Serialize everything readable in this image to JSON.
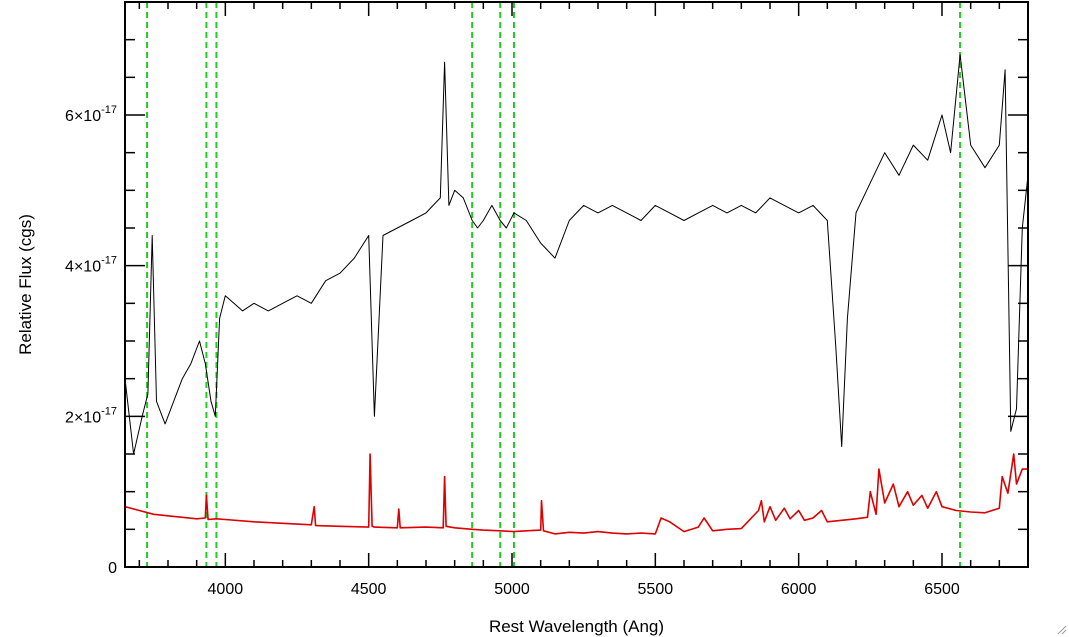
{
  "chart_data": {
    "type": "line",
    "title": "",
    "xlabel": "Rest Wavelength (Ang)",
    "ylabel": "Relative Flux (cgs)",
    "xlim": [
      3650,
      6800
    ],
    "ylim": [
      0,
      7.5e-17
    ],
    "x_ticks": [
      {
        "value": 4000,
        "label": "4000"
      },
      {
        "value": 4500,
        "label": "4500"
      },
      {
        "value": 5000,
        "label": "5000"
      },
      {
        "value": 5500,
        "label": "5500"
      },
      {
        "value": 6000,
        "label": "6000"
      },
      {
        "value": 6500,
        "label": "6500"
      }
    ],
    "y_ticks": [
      {
        "value": 0,
        "mantissa": "0",
        "exponent": ""
      },
      {
        "value": 2e-17,
        "mantissa": "2×10",
        "exponent": "-17"
      },
      {
        "value": 4e-17,
        "mantissa": "4×10",
        "exponent": "-17"
      },
      {
        "value": 6e-17,
        "mantissa": "6×10",
        "exponent": "-17"
      }
    ],
    "grid": false,
    "series": [
      {
        "color": "#000000",
        "x": [
          3650,
          3680,
          3710,
          3730,
          3745,
          3760,
          3790,
          3820,
          3850,
          3880,
          3910,
          3930,
          3950,
          3965,
          3980,
          4000,
          4030,
          4060,
          4100,
          4150,
          4200,
          4250,
          4300,
          4350,
          4400,
          4450,
          4500,
          4520,
          4550,
          4600,
          4650,
          4700,
          4750,
          4765,
          4780,
          4800,
          4830,
          4861,
          4880,
          4900,
          4930,
          4959,
          4980,
          5007,
          5050,
          5100,
          5150,
          5200,
          5250,
          5300,
          5350,
          5400,
          5450,
          5500,
          5550,
          5600,
          5650,
          5700,
          5750,
          5800,
          5850,
          5900,
          5950,
          6000,
          6050,
          6100,
          6130,
          6150,
          6170,
          6200,
          6250,
          6300,
          6350,
          6400,
          6450,
          6500,
          6530,
          6563,
          6600,
          6650,
          6700,
          6720,
          6740,
          6760,
          6780,
          6800
        ],
        "y": [
          2.5e-17,
          1.5e-17,
          2e-17,
          2.3e-17,
          4.4e-17,
          2.2e-17,
          1.9e-17,
          2.2e-17,
          2.5e-17,
          2.7e-17,
          3e-17,
          2.7e-17,
          2.2e-17,
          2e-17,
          3.3e-17,
          3.6e-17,
          3.5e-17,
          3.4e-17,
          3.5e-17,
          3.4e-17,
          3.5e-17,
          3.6e-17,
          3.5e-17,
          3.8e-17,
          3.9e-17,
          4.1e-17,
          4.4e-17,
          2e-17,
          4.4e-17,
          4.5e-17,
          4.6e-17,
          4.7e-17,
          4.9e-17,
          6.7e-17,
          4.8e-17,
          5e-17,
          4.9e-17,
          4.6e-17,
          4.5e-17,
          4.6e-17,
          4.8e-17,
          4.6e-17,
          4.5e-17,
          4.7e-17,
          4.6e-17,
          4.3e-17,
          4.1e-17,
          4.6e-17,
          4.8e-17,
          4.7e-17,
          4.8e-17,
          4.7e-17,
          4.6e-17,
          4.8e-17,
          4.7e-17,
          4.6e-17,
          4.7e-17,
          4.8e-17,
          4.7e-17,
          4.8e-17,
          4.7e-17,
          4.9e-17,
          4.8e-17,
          4.7e-17,
          4.8e-17,
          4.6e-17,
          2.9e-17,
          1.6e-17,
          3.3e-17,
          4.7e-17,
          5.1e-17,
          5.5e-17,
          5.2e-17,
          5.6e-17,
          5.4e-17,
          6e-17,
          5.5e-17,
          6.8e-17,
          5.6e-17,
          5.3e-17,
          5.6e-17,
          6.6e-17,
          1.8e-17,
          2.1e-17,
          4.5e-17,
          5.2e-17
        ]
      },
      {
        "color": "#dd0000",
        "x": [
          3650,
          3700,
          3750,
          3800,
          3850,
          3900,
          3930,
          3934,
          3940,
          3969,
          4000,
          4100,
          4200,
          4300,
          4310,
          4315,
          4400,
          4500,
          4505,
          4512,
          4520,
          4600,
          4605,
          4610,
          4700,
          4760,
          4765,
          4770,
          4800,
          4861,
          4900,
          4959,
          5007,
          5050,
          5100,
          5103,
          5110,
          5150,
          5200,
          5250,
          5300,
          5350,
          5400,
          5450,
          5500,
          5520,
          5550,
          5600,
          5650,
          5670,
          5700,
          5750,
          5800,
          5860,
          5870,
          5880,
          5900,
          5920,
          5950,
          5970,
          6000,
          6020,
          6050,
          6080,
          6100,
          6150,
          6200,
          6240,
          6250,
          6270,
          6280,
          6300,
          6330,
          6350,
          6380,
          6400,
          6430,
          6450,
          6480,
          6500,
          6550,
          6600,
          6650,
          6700,
          6710,
          6730,
          6750,
          6760,
          6780,
          6800
        ],
        "y": [
          8e-18,
          7.5e-18,
          7e-18,
          6.8e-18,
          6.6e-18,
          6.4e-18,
          6.5e-18,
          9.5e-18,
          6.3e-18,
          6.4e-18,
          6.3e-18,
          6e-18,
          5.8e-18,
          5.6e-18,
          8e-18,
          5.5e-18,
          5.4e-18,
          5.3e-18,
          1.5e-17,
          5.4e-18,
          5.3e-18,
          5.2e-18,
          7.7e-18,
          5.2e-18,
          5.3e-18,
          5.2e-18,
          1.2e-17,
          5.4e-18,
          5.2e-18,
          5e-18,
          4.9e-18,
          4.8e-18,
          4.7e-18,
          4.8e-18,
          4.9e-18,
          8.8e-18,
          4.8e-18,
          4.4e-18,
          4.6e-18,
          4.5e-18,
          4.7e-18,
          4.5e-18,
          4.4e-18,
          4.5e-18,
          4.4e-18,
          6.5e-18,
          6e-18,
          4.7e-18,
          5.3e-18,
          6.5e-18,
          4.8e-18,
          5e-18,
          5.1e-18,
          7.5e-18,
          8.8e-18,
          6e-18,
          8e-18,
          6.2e-18,
          7.8e-18,
          6.4e-18,
          7.5e-18,
          6.2e-18,
          6.5e-18,
          7.5e-18,
          6e-18,
          6.2e-18,
          6.4e-18,
          6.6e-18,
          1e-17,
          7e-18,
          1.3e-17,
          8.5e-18,
          1.1e-17,
          8e-18,
          1e-17,
          8.2e-18,
          9.5e-18,
          7.8e-18,
          1e-17,
          8e-18,
          7.5e-18,
          7.3e-18,
          7.2e-18,
          7.8e-18,
          1.2e-17,
          9.8e-18,
          1.5e-17,
          1.1e-17,
          1.3e-17,
          1.3e-17
        ]
      }
    ],
    "vertical_lines": {
      "color": "#22cc22",
      "style": "dashed",
      "x": [
        3727,
        3934,
        3969,
        4861,
        4959,
        5007,
        6563
      ]
    }
  }
}
